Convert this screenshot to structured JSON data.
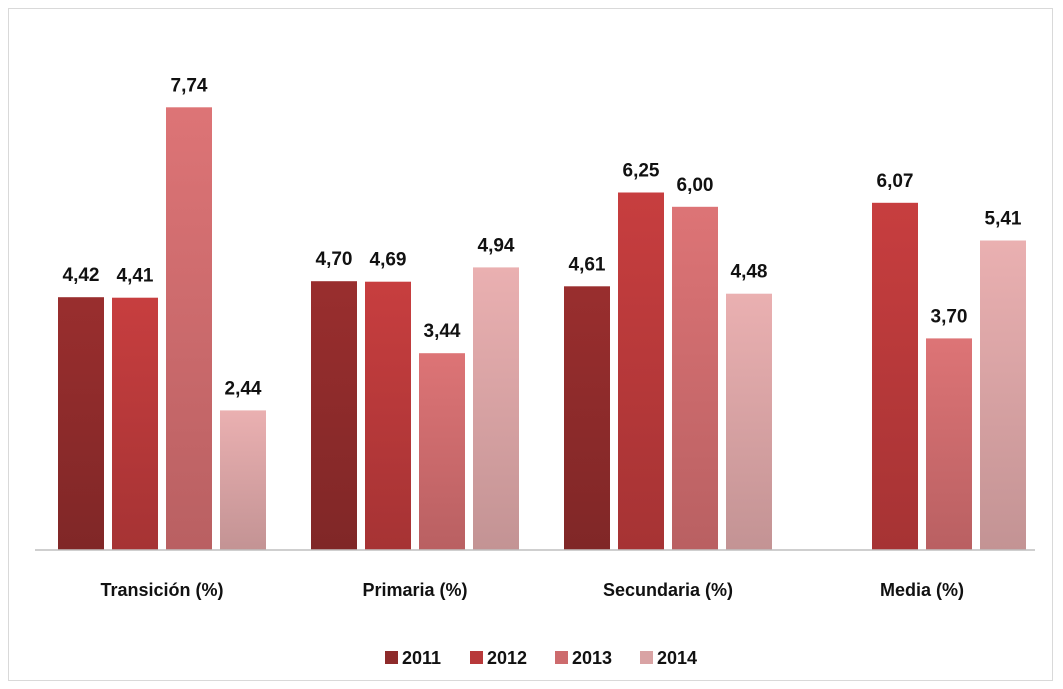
{
  "chart_data": {
    "type": "bar",
    "title": "",
    "xlabel": "",
    "ylabel": "",
    "categories": [
      "Transición (%)",
      "Primaria (%)",
      "Secundaria (%)",
      "Media (%)"
    ],
    "series": [
      {
        "name": "2011",
        "color": "#8e2b2b",
        "values": [
          4.42,
          4.7,
          4.61,
          null
        ],
        "labels": [
          "4,42",
          "4,70",
          "4,61",
          ""
        ]
      },
      {
        "name": "2012",
        "color": "#b8393a",
        "values": [
          4.41,
          4.69,
          6.25,
          6.07
        ],
        "labels": [
          "4,41",
          "4,69",
          "6,25",
          "6,07"
        ]
      },
      {
        "name": "2013",
        "color": "#cd6b6d",
        "values": [
          7.74,
          3.44,
          6.0,
          3.7
        ],
        "labels": [
          "7,74",
          "3,44",
          "6,00",
          "3,70"
        ]
      },
      {
        "name": "2014",
        "color": "#d9a3a4",
        "values": [
          2.44,
          4.94,
          4.48,
          5.41
        ],
        "labels": [
          "2,44",
          "4,94",
          "4,48",
          "5,41"
        ]
      }
    ],
    "ylim": [
      0,
      8.5
    ],
    "grid": false,
    "legend": "bottom"
  }
}
